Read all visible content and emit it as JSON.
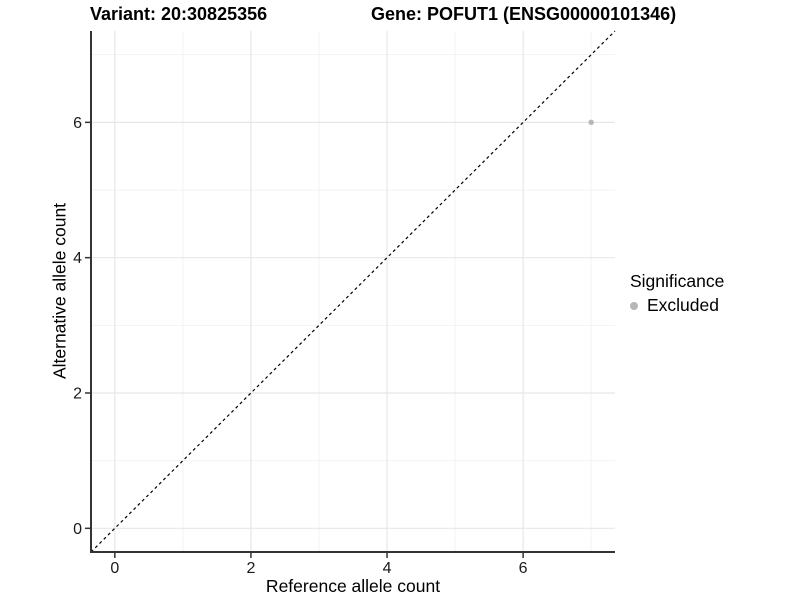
{
  "header": {
    "variant_title": "Variant: 20:30825356",
    "gene_title": "Gene: POFUT1 (ENSG00000101346)"
  },
  "chart_data": {
    "type": "scatter",
    "title": "Variant: 20:30825356 — Gene: POFUT1 (ENSG00000101346)",
    "xlabel": "Reference allele count",
    "ylabel": "Alternative allele count",
    "xlim": [
      -0.35,
      7.35
    ],
    "ylim": [
      -0.35,
      7.35
    ],
    "x_major_ticks": [
      0,
      2,
      4,
      6
    ],
    "y_major_ticks": [
      0,
      2,
      4,
      6
    ],
    "x_minor_ticks": [
      1,
      3,
      5,
      7
    ],
    "y_minor_ticks": [
      1,
      3,
      5,
      7
    ],
    "grid": true,
    "identity_line": {
      "style": "dashed",
      "color": "#000000",
      "slope": 1,
      "intercept": 0
    },
    "series": [
      {
        "name": "Excluded",
        "color": "#b7b7b7",
        "points": [
          {
            "x": 7,
            "y": 6
          }
        ]
      }
    ],
    "legend": {
      "title": "Significance",
      "position": "right",
      "items": [
        {
          "label": "Excluded",
          "color": "#b7b7b7"
        }
      ]
    }
  },
  "colors": {
    "background": "#ffffff",
    "grid_major": "#e7e7e7",
    "grid_minor": "#f3f3f3",
    "axis_line": "#333333",
    "tick_text": "#1a1a1a"
  }
}
